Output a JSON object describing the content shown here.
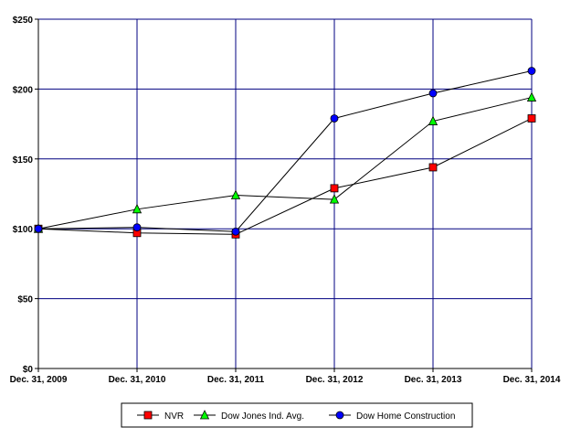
{
  "chart_data": {
    "type": "line",
    "title": "",
    "xlabel": "",
    "ylabel": "",
    "categories": [
      "Dec. 31, 2009",
      "Dec. 31, 2010",
      "Dec. 31, 2011",
      "Dec. 31, 2012",
      "Dec. 31, 2013",
      "Dec. 31, 2014"
    ],
    "ylim": [
      0,
      250
    ],
    "yticks": [
      0,
      50,
      100,
      150,
      200,
      250
    ],
    "ytick_labels": [
      "$0",
      "$50",
      "$100",
      "$150",
      "$200",
      "$250"
    ],
    "grid": true,
    "legend_position": "bottom",
    "series": [
      {
        "name": "NVR",
        "marker": "square",
        "color": "#ff0000",
        "values": [
          100,
          97,
          96,
          129,
          144,
          179
        ]
      },
      {
        "name": "Dow Jones Ind. Avg.",
        "marker": "triangle",
        "color": "#00ff00",
        "values": [
          100,
          114,
          124,
          121,
          177,
          194
        ]
      },
      {
        "name": "Dow Home Construction",
        "marker": "circle",
        "color": "#0000ff",
        "values": [
          100,
          101,
          98,
          179,
          197,
          213
        ]
      }
    ],
    "colors": {
      "grid": "#000080",
      "line": "#000000",
      "plot_background": "#ffffff"
    }
  }
}
